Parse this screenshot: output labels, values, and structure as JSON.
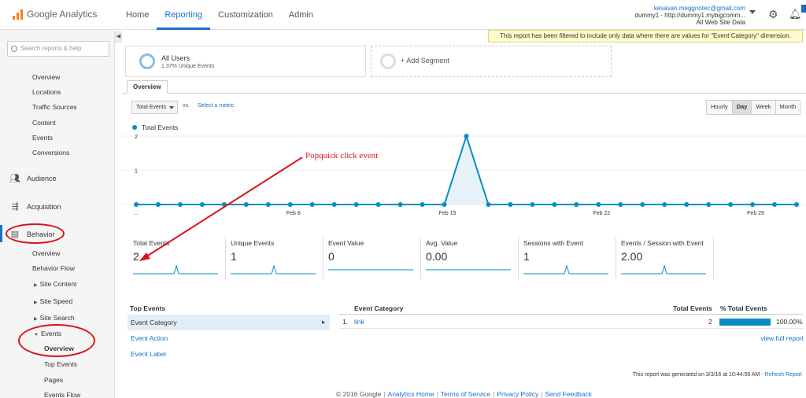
{
  "app": {
    "name": "Google Analytics"
  },
  "nav": {
    "tabs": [
      "Home",
      "Reporting",
      "Customization",
      "Admin"
    ],
    "active": "Reporting"
  },
  "account": {
    "email": "kesavan.meggnotec@gmail.com",
    "property": "dummy1 - http://dummy1.mybigcomm...",
    "view": "All Web Site Data"
  },
  "sidebar": {
    "search_placeholder": "Search reports & help",
    "top_items": [
      "Overview",
      "Locations",
      "Traffic Sources",
      "Content",
      "Events",
      "Conversions"
    ],
    "sections": {
      "audience": "Audience",
      "acquisition": "Acquisition",
      "behavior": "Behavior"
    },
    "behavior_items": {
      "overview": "Overview",
      "flow": "Behavior Flow",
      "site_content": "Site Content",
      "site_speed": "Site Speed",
      "site_search": "Site Search",
      "events": "Events"
    },
    "events_items": {
      "overview": "Overview",
      "top_events": "Top Events",
      "pages": "Pages",
      "flow": "Events Flow"
    }
  },
  "banner": "This report has been filtered to include only data where there are values for \"Event Category\" dimension.",
  "segments": {
    "all_users": "All Users",
    "all_users_sub": "1.37% Unique Events",
    "add": "+ Add Segment"
  },
  "tab": "Overview",
  "metric_select": {
    "primary": "Total Events",
    "vs": "vs.",
    "select": "Select a metric"
  },
  "periods": {
    "options": [
      "Hourly",
      "Day",
      "Week",
      "Month"
    ],
    "active": "Day"
  },
  "colors": {
    "accent": "#058dc7",
    "link": "#1a6fc7",
    "annotation": "#d9131b"
  },
  "chart_data": {
    "type": "line",
    "series": [
      {
        "name": "Total Events",
        "values": [
          0,
          0,
          0,
          0,
          0,
          0,
          0,
          0,
          0,
          0,
          0,
          0,
          0,
          0,
          0,
          2,
          0,
          0,
          0,
          0,
          0,
          0,
          0,
          0,
          0,
          0,
          0,
          0,
          0,
          0,
          0
        ]
      }
    ],
    "x_ticks": [
      "...",
      "Feb 8",
      "Feb 15",
      "Feb 22",
      "Feb 29"
    ],
    "y_ticks": [
      "2",
      "1"
    ],
    "ylim": [
      0,
      2
    ],
    "annotation": "Popquick click event"
  },
  "scorecards": [
    {
      "label": "Total Events",
      "value": "2"
    },
    {
      "label": "Unique Events",
      "value": "1"
    },
    {
      "label": "Event Value",
      "value": "0"
    },
    {
      "label": "Avg. Value",
      "value": "0.00"
    },
    {
      "label": "Sessions with Event",
      "value": "1"
    },
    {
      "label": "Events / Session with Event",
      "value": "2.00"
    }
  ],
  "top_events": {
    "header": "Top Events",
    "items": [
      "Event Category",
      "Event Action",
      "Event Label"
    ],
    "active": "Event Category"
  },
  "table": {
    "headers": {
      "category": "Event Category",
      "total": "Total Events",
      "pct": "% Total Events"
    },
    "rows": [
      {
        "index": "1.",
        "category": "link",
        "total": "2",
        "pct": "100.00%",
        "pct_value": 1.0
      }
    ],
    "view_full": "view full report"
  },
  "generated": {
    "text": "This report was generated on 3/3/16 at 10:44:56 AM -",
    "refresh": "Refresh Report"
  },
  "footer": {
    "copyright": "© 2016 Google",
    "links": [
      "Analytics Home",
      "Terms of Service",
      "Privacy Policy",
      "Send Feedback"
    ]
  }
}
